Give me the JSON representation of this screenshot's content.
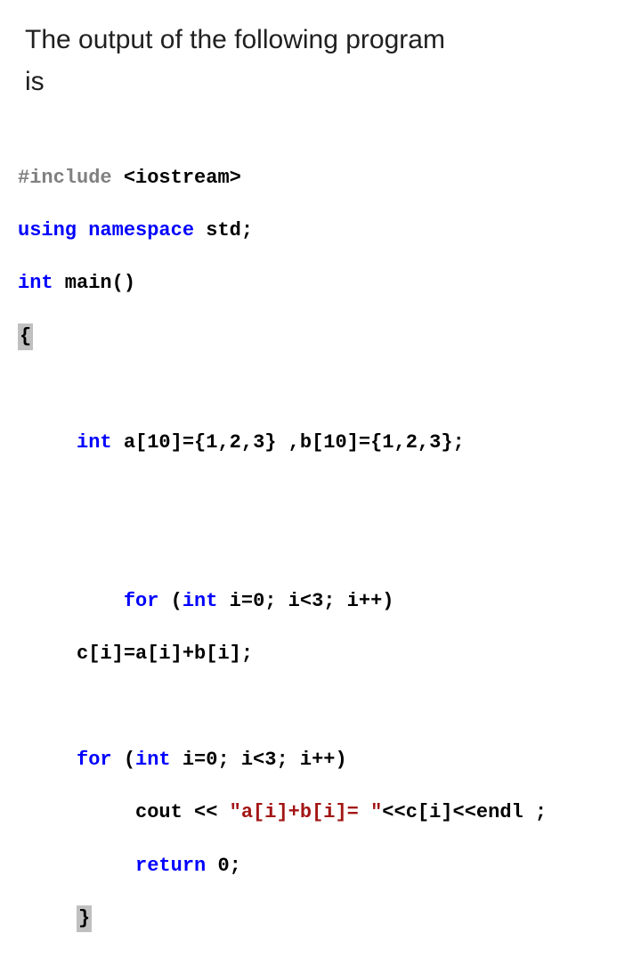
{
  "question": {
    "line1": "The output of the following program",
    "line2": "is"
  },
  "code": {
    "l1_include": "#include",
    "l1_open": " <",
    "l1_header": "iostream",
    "l1_close": ">",
    "l2_using": "using",
    "l2_ns": " namespace",
    "l2_std": " std;",
    "l3_int": "int",
    "l3_main": " main()",
    "l4_brace": "{",
    "l6_int": "int",
    "l6_a": " a[",
    "l6_ten1": "10",
    "l6_mid1": "]={",
    "l6_v1": "1",
    "l6_c1": ",",
    "l6_v2": "2",
    "l6_c2": ",",
    "l6_v3": "3",
    "l6_mid2": "} ,b[",
    "l6_ten2": "10",
    "l6_mid3": "]={",
    "l6_v4": "1",
    "l6_c3": ",",
    "l6_v5": "2",
    "l6_c4": ",",
    "l6_v6": "3",
    "l6_end": "};",
    "l9_for": "for",
    "l9_open": " (",
    "l9_int": "int",
    "l9_rest": " i=",
    "l9_zero": "0",
    "l9_cond": "; i<",
    "l9_three": "3",
    "l9_inc": "; i++)",
    "l10_body": "c[i]=a[i]+b[i];",
    "l12_for": "for",
    "l12_open": " (",
    "l12_int": "int",
    "l12_rest": " i=",
    "l12_zero": "0",
    "l12_cond": "; i<",
    "l12_three": "3",
    "l12_inc": "; i++)",
    "l13_cout": "cout << ",
    "l13_str": "\"a[i]+b[i]= \"",
    "l13_rest": "<<c[i]<<endl ;",
    "l14_return": "return",
    "l14_val": " ",
    "l14_zero": "0",
    "l14_semi": ";",
    "l15_brace": "}"
  }
}
